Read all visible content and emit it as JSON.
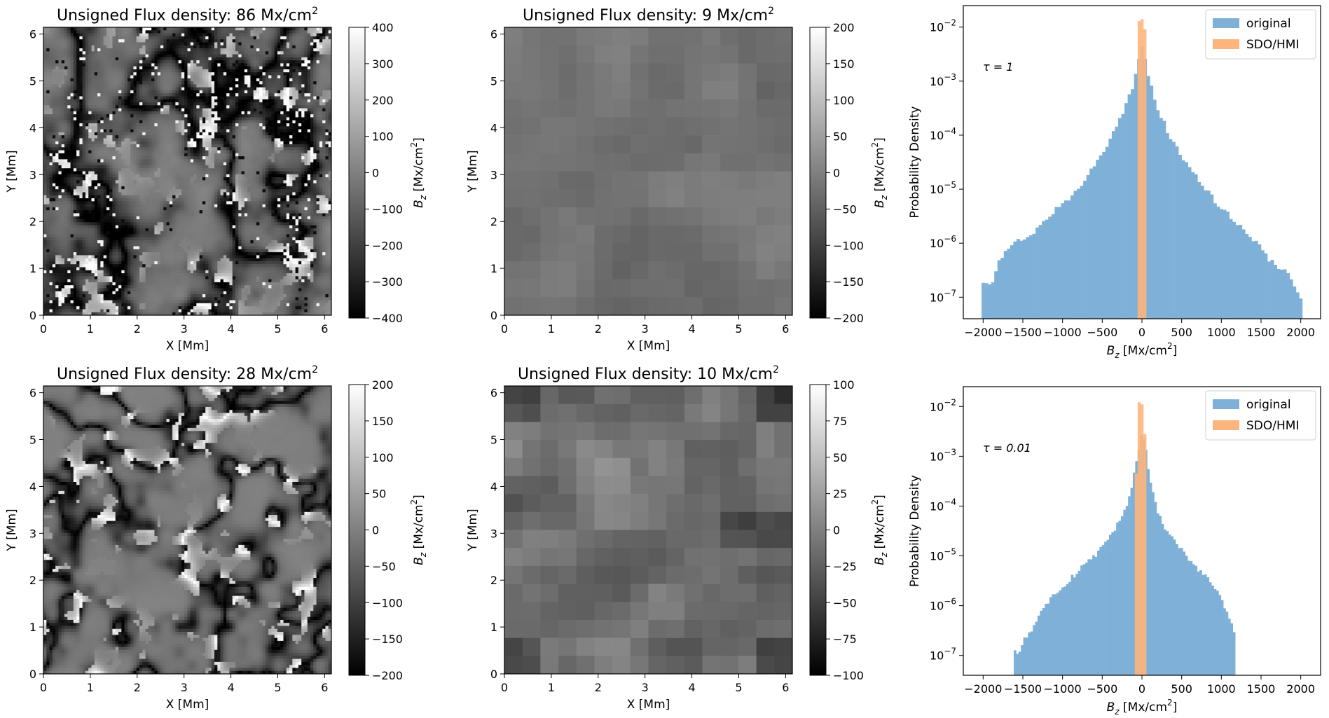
{
  "chart_data": [
    {
      "type": "heatmap",
      "title_prefix": "Unsigned Flux density: ",
      "title_value": "86",
      "title_unit": "Mx/cm",
      "title_sup": "2",
      "xlabel": "X [Mm]",
      "ylabel": "Y [Mm]",
      "xlim": [
        0,
        6.144
      ],
      "ylim": [
        0,
        6.144
      ],
      "x_ticks": [
        0,
        1,
        2,
        3,
        4,
        5,
        6
      ],
      "y_ticks": [
        0,
        1,
        2,
        3,
        4,
        5,
        6
      ],
      "colorbar": {
        "label": "Bz [Mx/cm2]",
        "label_var": "B",
        "label_sub": "z",
        "label_unit": "[Mx/cm",
        "label_sup": "2",
        "label_close": "]",
        "range": [
          -400,
          400
        ],
        "ticks": [
          -400,
          -300,
          -200,
          -100,
          0,
          100,
          200,
          300,
          400
        ],
        "colormap": "gray"
      },
      "texture": "fine-network"
    },
    {
      "type": "heatmap",
      "title_prefix": "Unsigned Flux density: ",
      "title_value": "9",
      "title_unit": "Mx/cm",
      "title_sup": "2",
      "xlabel": "X [Mm]",
      "ylabel": "Y [Mm]",
      "xlim": [
        0,
        6.144
      ],
      "ylim": [
        0,
        6.144
      ],
      "x_ticks": [
        0,
        1,
        2,
        3,
        4,
        5,
        6
      ],
      "y_ticks": [
        0,
        1,
        2,
        3,
        4,
        5,
        6
      ],
      "colorbar": {
        "label": "Bz [Mx/cm2]",
        "label_var": "B",
        "label_sub": "z",
        "label_unit": "[Mx/cm",
        "label_sup": "2",
        "label_close": "]",
        "range": [
          -200,
          200
        ],
        "ticks": [
          -200,
          -150,
          -100,
          -50,
          0,
          50,
          100,
          150,
          200
        ],
        "colormap": "gray"
      },
      "texture": "coarse-pixels"
    },
    {
      "type": "bar",
      "subtype": "histogram",
      "annotation": "τ = 1",
      "xlabel": "Bz [Mx/cm2]",
      "xlabel_var": "B",
      "xlabel_sub": "z",
      "xlabel_unit": "[Mx/cm",
      "xlabel_sup": "2",
      "xlabel_close": "]",
      "ylabel": "Probability Density",
      "y_scale": "log",
      "xlim": [
        -2250,
        2250
      ],
      "ylim": [
        4e-08,
        0.025
      ],
      "x_ticks": [
        -2000,
        -1500,
        -1000,
        -500,
        0,
        500,
        1000,
        1500,
        2000
      ],
      "y_ticks": [
        {
          "value": 1e-07,
          "base": "10",
          "exp": "-7"
        },
        {
          "value": 1e-06,
          "base": "10",
          "exp": "-6"
        },
        {
          "value": 1e-05,
          "base": "10",
          "exp": "-5"
        },
        {
          "value": 0.0001,
          "base": "10",
          "exp": "-4"
        },
        {
          "value": 0.001,
          "base": "10",
          "exp": "-3"
        },
        {
          "value": 0.01,
          "base": "10",
          "exp": "-2"
        }
      ],
      "legend_position": "top-right",
      "series": [
        {
          "name": "original",
          "color": "#7fb1d8",
          "bin_width": 40,
          "points": [
            [
              -2000,
              1.9e-07
            ],
            [
              -1900,
              1.7e-07
            ],
            [
              -1800,
              4.5e-07
            ],
            [
              -1700,
              7e-07
            ],
            [
              -1600,
              1e-06
            ],
            [
              -1500,
              1.2e-06
            ],
            [
              -1400,
              1.5e-06
            ],
            [
              -1300,
              2e-06
            ],
            [
              -1200,
              3e-06
            ],
            [
              -1100,
              4e-06
            ],
            [
              -1000,
              5.5e-06
            ],
            [
              -900,
              7.5e-06
            ],
            [
              -800,
              1.1e-05
            ],
            [
              -700,
              1.7e-05
            ],
            [
              -600,
              2.6e-05
            ],
            [
              -500,
              4.5e-05
            ],
            [
              -400,
              8e-05
            ],
            [
              -300,
              0.00016
            ],
            [
              -200,
              0.00035
            ],
            [
              -100,
              0.001
            ],
            [
              -40,
              0.0025
            ],
            [
              0,
              0.0045
            ],
            [
              40,
              0.0025
            ],
            [
              100,
              0.0009
            ],
            [
              200,
              0.00032
            ],
            [
              300,
              0.00014
            ],
            [
              400,
              7e-05
            ],
            [
              500,
              4e-05
            ],
            [
              600,
              2.5e-05
            ],
            [
              700,
              1.6e-05
            ],
            [
              800,
              1e-05
            ],
            [
              900,
              6.5e-06
            ],
            [
              1000,
              4.5e-06
            ],
            [
              1100,
              3.2e-06
            ],
            [
              1200,
              2.3e-06
            ],
            [
              1300,
              1.7e-06
            ],
            [
              1400,
              1.2e-06
            ],
            [
              1500,
              8e-07
            ],
            [
              1600,
              5e-07
            ],
            [
              1700,
              4e-07
            ],
            [
              1800,
              3e-07
            ],
            [
              1900,
              2.2e-07
            ],
            [
              1960,
              1.2e-07
            ],
            [
              2000,
              9e-08
            ]
          ]
        },
        {
          "name": "SDO/HMI",
          "color": "#fdb57d",
          "bin_width": 36,
          "points": [
            [
              -36,
              0.012
            ],
            [
              0,
              0.014
            ],
            [
              36,
              0.0095
            ]
          ]
        }
      ]
    },
    {
      "type": "heatmap",
      "title_prefix": "Unsigned Flux density: ",
      "title_value": "28",
      "title_unit": "Mx/cm",
      "title_sup": "2",
      "xlabel": "X [Mm]",
      "ylabel": "Y [Mm]",
      "xlim": [
        0,
        6.144
      ],
      "ylim": [
        0,
        6.144
      ],
      "x_ticks": [
        0,
        1,
        2,
        3,
        4,
        5,
        6
      ],
      "y_ticks": [
        0,
        1,
        2,
        3,
        4,
        5,
        6
      ],
      "colorbar": {
        "label": "Bz [Mx/cm2]",
        "label_var": "B",
        "label_sub": "z",
        "label_unit": "[Mx/cm",
        "label_sup": "2",
        "label_close": "]",
        "range": [
          -200,
          200
        ],
        "ticks": [
          -200,
          -150,
          -100,
          -50,
          0,
          50,
          100,
          150,
          200
        ],
        "colormap": "gray"
      },
      "texture": "smooth-network"
    },
    {
      "type": "heatmap",
      "title_prefix": "Unsigned Flux density: ",
      "title_value": "10",
      "title_unit": "Mx/cm",
      "title_sup": "2",
      "xlabel": "X [Mm]",
      "ylabel": "Y [Mm]",
      "xlim": [
        0,
        6.144
      ],
      "ylim": [
        0,
        6.144
      ],
      "x_ticks": [
        0,
        1,
        2,
        3,
        4,
        5,
        6
      ],
      "y_ticks": [
        0,
        1,
        2,
        3,
        4,
        5,
        6
      ],
      "colorbar": {
        "label": "Bz [Mx/cm2]",
        "label_var": "B",
        "label_sub": "z",
        "label_unit": "[Mx/cm",
        "label_sup": "2",
        "label_close": "]",
        "range": [
          -100,
          100
        ],
        "ticks": [
          -100,
          -75,
          -50,
          -25,
          0,
          25,
          50,
          75,
          100
        ],
        "colormap": "gray"
      },
      "texture": "coarse-pixels-contrast"
    },
    {
      "type": "bar",
      "subtype": "histogram",
      "annotation": "τ = 0.01",
      "xlabel": "Bz [Mx/cm2]",
      "xlabel_var": "B",
      "xlabel_sub": "z",
      "xlabel_unit": "[Mx/cm",
      "xlabel_sup": "2",
      "xlabel_close": "]",
      "ylabel": "Probability Density",
      "y_scale": "log",
      "xlim": [
        -2250,
        2250
      ],
      "ylim": [
        4e-08,
        0.025
      ],
      "x_ticks": [
        -2000,
        -1500,
        -1000,
        -500,
        0,
        500,
        1000,
        1500,
        2000
      ],
      "y_ticks": [
        {
          "value": 1e-07,
          "base": "10",
          "exp": "-7"
        },
        {
          "value": 1e-06,
          "base": "10",
          "exp": "-6"
        },
        {
          "value": 1e-05,
          "base": "10",
          "exp": "-5"
        },
        {
          "value": 0.0001,
          "base": "10",
          "exp": "-4"
        },
        {
          "value": 0.001,
          "base": "10",
          "exp": "-3"
        },
        {
          "value": 0.01,
          "base": "10",
          "exp": "-2"
        }
      ],
      "legend_position": "top-right",
      "series": [
        {
          "name": "original",
          "color": "#7fb1d8",
          "bin_width": 30,
          "points": [
            [
              -1600,
              1.2e-07
            ],
            [
              -1550,
              1e-07
            ],
            [
              -1500,
              2e-07
            ],
            [
              -1400,
              3e-07
            ],
            [
              -1300,
              6e-07
            ],
            [
              -1200,
              1.1e-06
            ],
            [
              -1100,
              1.7e-06
            ],
            [
              -1000,
              2.5e-06
            ],
            [
              -900,
              3.5e-06
            ],
            [
              -800,
              5e-06
            ],
            [
              -700,
              7e-06
            ],
            [
              -600,
              1e-05
            ],
            [
              -500,
              1.5e-05
            ],
            [
              -400,
              2.5e-05
            ],
            [
              -300,
              4.5e-05
            ],
            [
              -200,
              0.0001
            ],
            [
              -120,
              0.0003
            ],
            [
              -60,
              0.001
            ],
            [
              0,
              0.003
            ],
            [
              60,
              0.001
            ],
            [
              120,
              0.00025
            ],
            [
              200,
              8e-05
            ],
            [
              300,
              3.5e-05
            ],
            [
              400,
              2e-05
            ],
            [
              500,
              1.3e-05
            ],
            [
              600,
              8e-06
            ],
            [
              700,
              5.5e-06
            ],
            [
              800,
              3.8e-06
            ],
            [
              900,
              2.4e-06
            ],
            [
              1000,
              1.4e-06
            ],
            [
              1100,
              6e-07
            ],
            [
              1150,
              4e-07
            ],
            [
              1180,
              1.2e-07
            ]
          ]
        },
        {
          "name": "SDO/HMI",
          "color": "#fdb57d",
          "bin_width": 36,
          "points": [
            [
              -72,
              0.0005
            ],
            [
              -36,
              0.011
            ],
            [
              0,
              0.0125
            ],
            [
              36,
              0.003
            ]
          ]
        }
      ]
    }
  ]
}
